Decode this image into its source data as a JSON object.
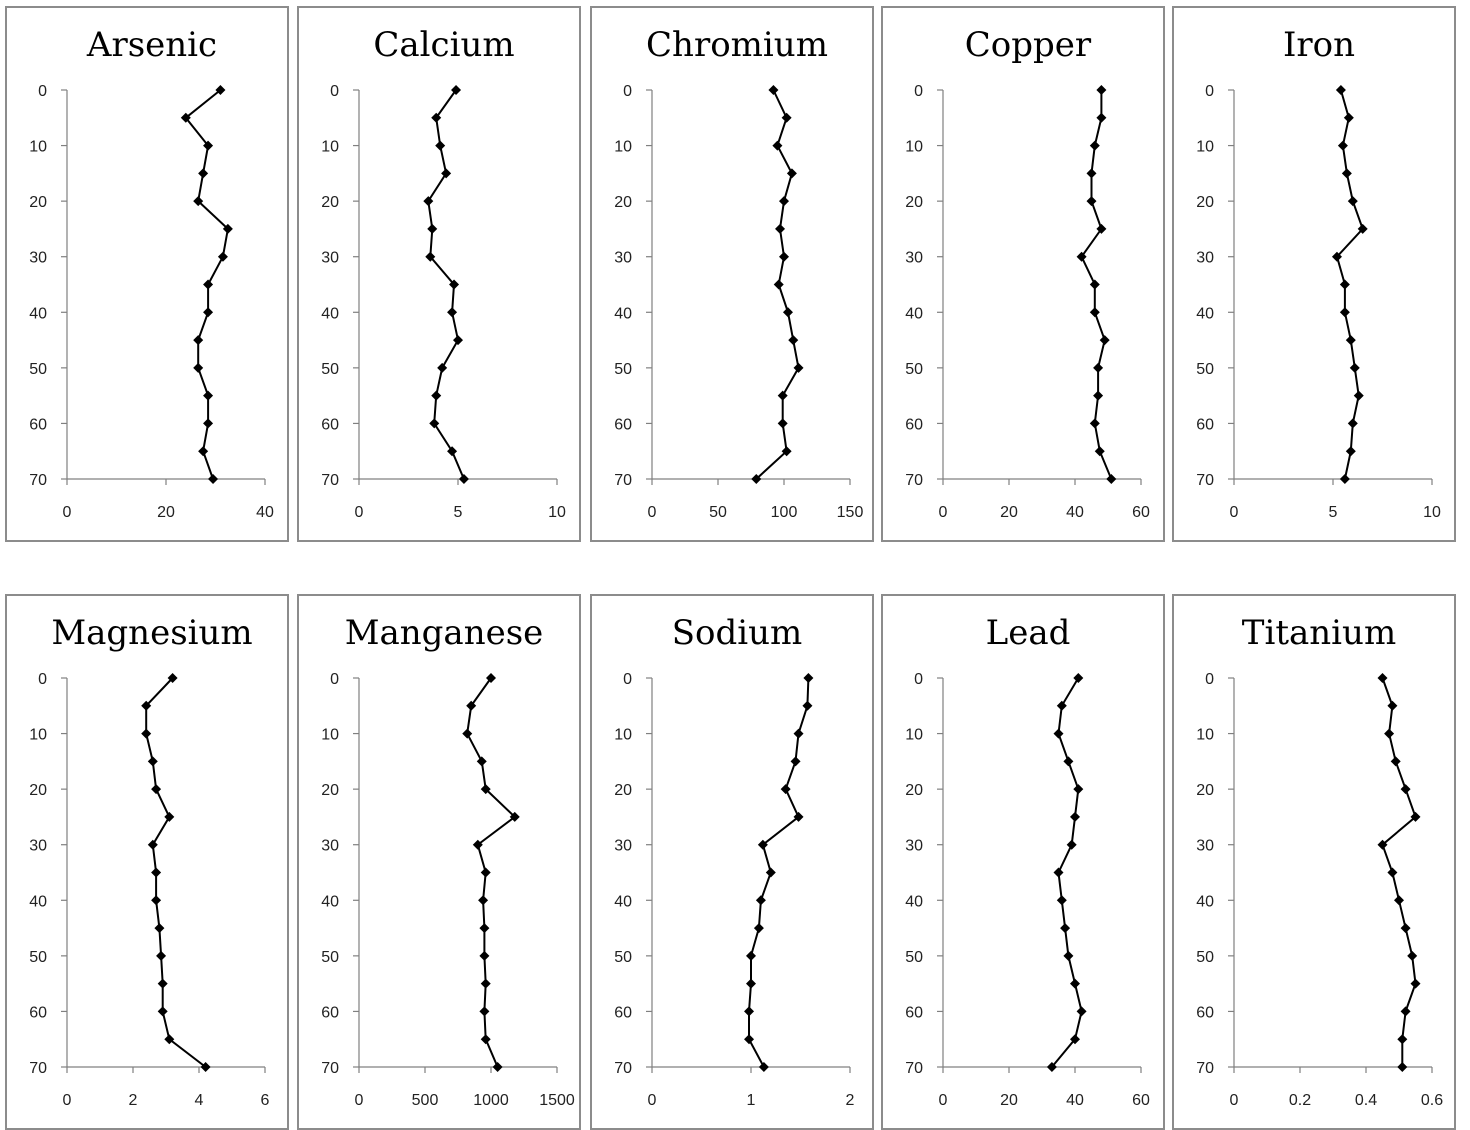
{
  "chart_data": [
    {
      "type": "line",
      "title": "Arsenic",
      "xlim": [
        0,
        40
      ],
      "xticks": [
        "0",
        "20",
        "40"
      ],
      "ylim": [
        0,
        70
      ],
      "yticks": [
        "0",
        "10",
        "20",
        "30",
        "40",
        "50",
        "60",
        "70"
      ],
      "y_inverted": true,
      "depths": [
        0,
        5,
        10,
        15,
        20,
        25,
        30,
        35,
        40,
        45,
        50,
        55,
        60,
        65,
        70
      ],
      "values": [
        31,
        24,
        28.5,
        27.5,
        26.5,
        32.5,
        31.5,
        28.5,
        28.5,
        26.5,
        26.5,
        28.5,
        28.5,
        27.5,
        29.5
      ]
    },
    {
      "type": "line",
      "title": "Calcium",
      "xlim": [
        0,
        10
      ],
      "xticks": [
        "0",
        "5",
        "10"
      ],
      "ylim": [
        0,
        70
      ],
      "yticks": [
        "0",
        "10",
        "20",
        "30",
        "40",
        "50",
        "60",
        "70"
      ],
      "y_inverted": true,
      "depths": [
        0,
        5,
        10,
        15,
        20,
        25,
        30,
        35,
        40,
        45,
        50,
        55,
        60,
        65,
        70
      ],
      "values": [
        4.9,
        3.9,
        4.1,
        4.4,
        3.5,
        3.7,
        3.6,
        4.8,
        4.7,
        5.0,
        4.2,
        3.9,
        3.8,
        4.7,
        5.3
      ]
    },
    {
      "type": "line",
      "title": "Chromium",
      "xlim": [
        0,
        150
      ],
      "xticks": [
        "0",
        "50",
        "100",
        "150"
      ],
      "ylim": [
        0,
        70
      ],
      "yticks": [
        "0",
        "10",
        "20",
        "30",
        "40",
        "50",
        "60",
        "70"
      ],
      "y_inverted": true,
      "depths": [
        0,
        5,
        10,
        15,
        20,
        25,
        30,
        35,
        40,
        45,
        50,
        55,
        60,
        65,
        70
      ],
      "values": [
        92,
        102,
        95,
        106,
        100,
        97,
        100,
        96,
        103,
        107,
        111,
        99,
        99,
        102,
        79
      ]
    },
    {
      "type": "line",
      "title": "Copper",
      "xlim": [
        0,
        60
      ],
      "xticks": [
        "0",
        "20",
        "40",
        "60"
      ],
      "ylim": [
        0,
        70
      ],
      "yticks": [
        "0",
        "10",
        "20",
        "30",
        "40",
        "50",
        "60",
        "70"
      ],
      "y_inverted": true,
      "depths": [
        0,
        5,
        10,
        15,
        20,
        25,
        30,
        35,
        40,
        45,
        50,
        55,
        60,
        65,
        70
      ],
      "values": [
        48,
        48,
        46,
        45,
        45,
        48,
        42,
        46,
        46,
        49,
        47,
        47,
        46,
        47.5,
        51
      ]
    },
    {
      "type": "line",
      "title": "Iron",
      "xlim": [
        0,
        10
      ],
      "xticks": [
        "0",
        "5",
        "10"
      ],
      "ylim": [
        0,
        70
      ],
      "yticks": [
        "0",
        "10",
        "20",
        "30",
        "40",
        "50",
        "60",
        "70"
      ],
      "y_inverted": true,
      "depths": [
        0,
        5,
        10,
        15,
        20,
        25,
        30,
        35,
        40,
        45,
        50,
        55,
        60,
        65,
        70
      ],
      "values": [
        5.4,
        5.8,
        5.5,
        5.7,
        6.0,
        6.5,
        5.2,
        5.6,
        5.6,
        5.9,
        6.1,
        6.3,
        6.0,
        5.9,
        5.6
      ]
    },
    {
      "type": "line",
      "title": "Magnesium",
      "xlim": [
        0,
        6
      ],
      "xticks": [
        "0",
        "2",
        "4",
        "6"
      ],
      "ylim": [
        0,
        70
      ],
      "yticks": [
        "0",
        "10",
        "20",
        "30",
        "40",
        "50",
        "60",
        "70"
      ],
      "y_inverted": true,
      "depths": [
        0,
        5,
        10,
        15,
        20,
        25,
        30,
        35,
        40,
        45,
        50,
        55,
        60,
        65,
        70
      ],
      "values": [
        3.2,
        2.4,
        2.4,
        2.6,
        2.7,
        3.1,
        2.6,
        2.7,
        2.7,
        2.8,
        2.85,
        2.9,
        2.9,
        3.1,
        4.2
      ]
    },
    {
      "type": "line",
      "title": "Manganese",
      "xlim": [
        0,
        1500
      ],
      "xticks": [
        "0",
        "500",
        "1000",
        "1500"
      ],
      "ylim": [
        0,
        70
      ],
      "yticks": [
        "0",
        "10",
        "20",
        "30",
        "40",
        "50",
        "60",
        "70"
      ],
      "y_inverted": true,
      "depths": [
        0,
        5,
        10,
        15,
        20,
        25,
        30,
        35,
        40,
        45,
        50,
        55,
        60,
        65,
        70
      ],
      "values": [
        1000,
        850,
        820,
        930,
        960,
        1180,
        900,
        960,
        940,
        950,
        950,
        960,
        950,
        960,
        1050
      ]
    },
    {
      "type": "line",
      "title": "Sodium",
      "xlim": [
        0,
        2
      ],
      "xticks": [
        "0",
        "1",
        "2"
      ],
      "ylim": [
        0,
        70
      ],
      "yticks": [
        "0",
        "10",
        "20",
        "30",
        "40",
        "50",
        "60",
        "70"
      ],
      "y_inverted": true,
      "depths": [
        0,
        5,
        10,
        15,
        20,
        25,
        30,
        35,
        40,
        45,
        50,
        55,
        60,
        65,
        70
      ],
      "values": [
        1.58,
        1.57,
        1.48,
        1.45,
        1.35,
        1.48,
        1.12,
        1.2,
        1.1,
        1.08,
        1.0,
        1.0,
        0.98,
        0.98,
        1.13
      ]
    },
    {
      "type": "line",
      "title": "Lead",
      "xlim": [
        0,
        60
      ],
      "xticks": [
        "0",
        "20",
        "40",
        "60"
      ],
      "ylim": [
        0,
        70
      ],
      "yticks": [
        "0",
        "10",
        "20",
        "30",
        "40",
        "50",
        "60",
        "70"
      ],
      "y_inverted": true,
      "depths": [
        0,
        5,
        10,
        15,
        20,
        25,
        30,
        35,
        40,
        45,
        50,
        55,
        60,
        65,
        70
      ],
      "values": [
        41,
        36,
        35,
        38,
        41,
        40,
        39,
        35,
        36,
        37,
        38,
        40,
        42,
        40,
        33
      ]
    },
    {
      "type": "line",
      "title": "Titanium",
      "xlim": [
        0,
        0.6
      ],
      "xticks": [
        "0",
        "0.2",
        "0.4",
        "0.6"
      ],
      "ylim": [
        0,
        70
      ],
      "yticks": [
        "0",
        "10",
        "20",
        "30",
        "40",
        "50",
        "60",
        "70"
      ],
      "y_inverted": true,
      "depths": [
        0,
        5,
        10,
        15,
        20,
        25,
        30,
        35,
        40,
        45,
        50,
        55,
        60,
        65,
        70
      ],
      "values": [
        0.45,
        0.48,
        0.47,
        0.49,
        0.52,
        0.55,
        0.45,
        0.48,
        0.5,
        0.52,
        0.54,
        0.55,
        0.52,
        0.51,
        0.51
      ]
    }
  ]
}
